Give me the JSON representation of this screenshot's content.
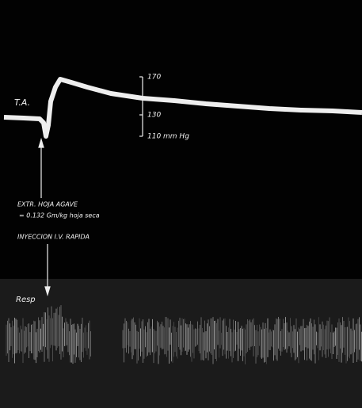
{
  "trace_label": "T.A.",
  "scale": {
    "ticks": [
      "170",
      "130",
      "110 mm Hg"
    ]
  },
  "annotation": {
    "lines": [
      "EXTR. HOJA AGAVE",
      "= 0.132 Gm/kg hoja seca",
      "INYECCION I.V. RAPIDA"
    ]
  },
  "resp_label": "Resp"
}
